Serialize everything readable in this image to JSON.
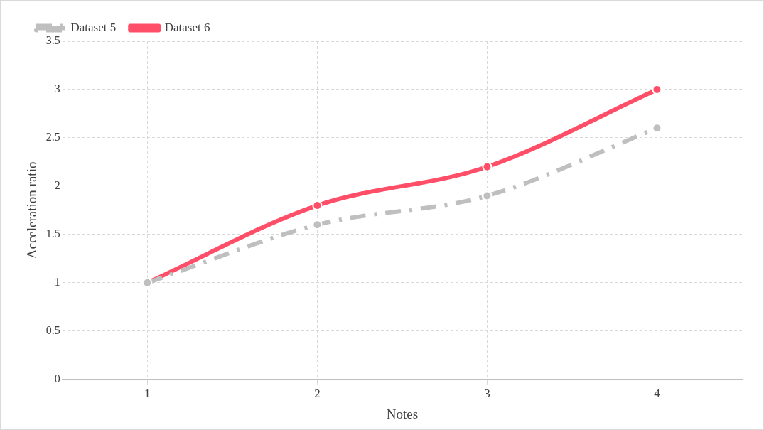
{
  "chart_data": {
    "type": "line",
    "xlabel": "Notes",
    "ylabel": "Acceleration ratio",
    "categories": [
      "1",
      "2",
      "3",
      "4"
    ],
    "series": [
      {
        "name": "Dataset 5",
        "color": "#bfbfbf",
        "values": [
          1,
          1.6,
          1.9,
          2.6
        ],
        "line_style": "dashed"
      },
      {
        "name": "Dataset 6",
        "color": "#ff4f68",
        "values": [
          1,
          1.8,
          2.2,
          3
        ],
        "line_style": "solid"
      }
    ],
    "ylim": [
      0,
      3.5
    ],
    "yticks": [
      0,
      0.5,
      1,
      1.5,
      2,
      2.5,
      3,
      3.5
    ],
    "grid": true,
    "legend": "top left",
    "marker": "circle"
  }
}
